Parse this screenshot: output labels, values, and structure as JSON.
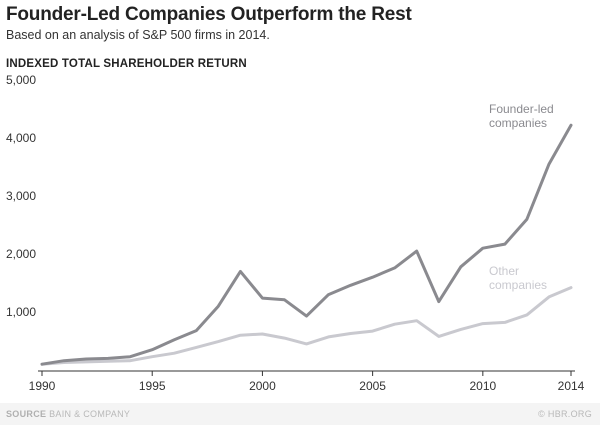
{
  "header": {
    "title": "Founder-Led Companies Outperform the Rest",
    "subtitle": "Based on an analysis of S&P 500 firms in 2014.",
    "ylabel": "INDEXED TOTAL SHAREHOLDER RETURN"
  },
  "footer": {
    "source_label": "SOURCE",
    "source_text": "BAIN & COMPANY",
    "credit": "© HBR.ORG"
  },
  "colors": {
    "founder_led": "#8a8a8f",
    "other": "#c9c9cf",
    "axis": "#333333",
    "background": "#ffffff"
  },
  "chart_data": {
    "type": "line",
    "title": "Founder-Led Companies Outperform the Rest",
    "subtitle": "Based on an analysis of S&P 500 firms in 2014.",
    "ylabel": "INDEXED TOTAL SHAREHOLDER RETURN",
    "xlabel": "",
    "x": [
      1990,
      1991,
      1992,
      1993,
      1994,
      1995,
      1996,
      1997,
      1998,
      1999,
      2000,
      2001,
      2002,
      2003,
      2004,
      2005,
      2006,
      2007,
      2008,
      2009,
      2010,
      2011,
      2012,
      2013,
      2014
    ],
    "xlim": [
      1990,
      2014
    ],
    "ylim": [
      0,
      5000
    ],
    "x_ticks": [
      1990,
      1995,
      2000,
      2005,
      2010,
      2014
    ],
    "y_ticks": [
      1000,
      2000,
      3000,
      4000,
      5000
    ],
    "y_tick_labels": [
      "1,000",
      "2,000",
      "3,000",
      "4,000",
      "5,000"
    ],
    "grid": false,
    "series": [
      {
        "name": "Founder-led companies",
        "label_lines": [
          "Founder-led",
          "companies"
        ],
        "values": [
          100,
          160,
          190,
          200,
          230,
          350,
          520,
          680,
          1100,
          1700,
          1240,
          1210,
          930,
          1300,
          1460,
          1600,
          1760,
          2050,
          1180,
          1780,
          2100,
          2170,
          2600,
          3550,
          4220
        ]
      },
      {
        "name": "Other companies",
        "label_lines": [
          "Other",
          "companies"
        ],
        "values": [
          100,
          130,
          140,
          150,
          160,
          230,
          290,
          390,
          490,
          600,
          620,
          550,
          450,
          570,
          630,
          670,
          790,
          850,
          580,
          700,
          800,
          820,
          950,
          1260,
          1420
        ]
      }
    ]
  }
}
